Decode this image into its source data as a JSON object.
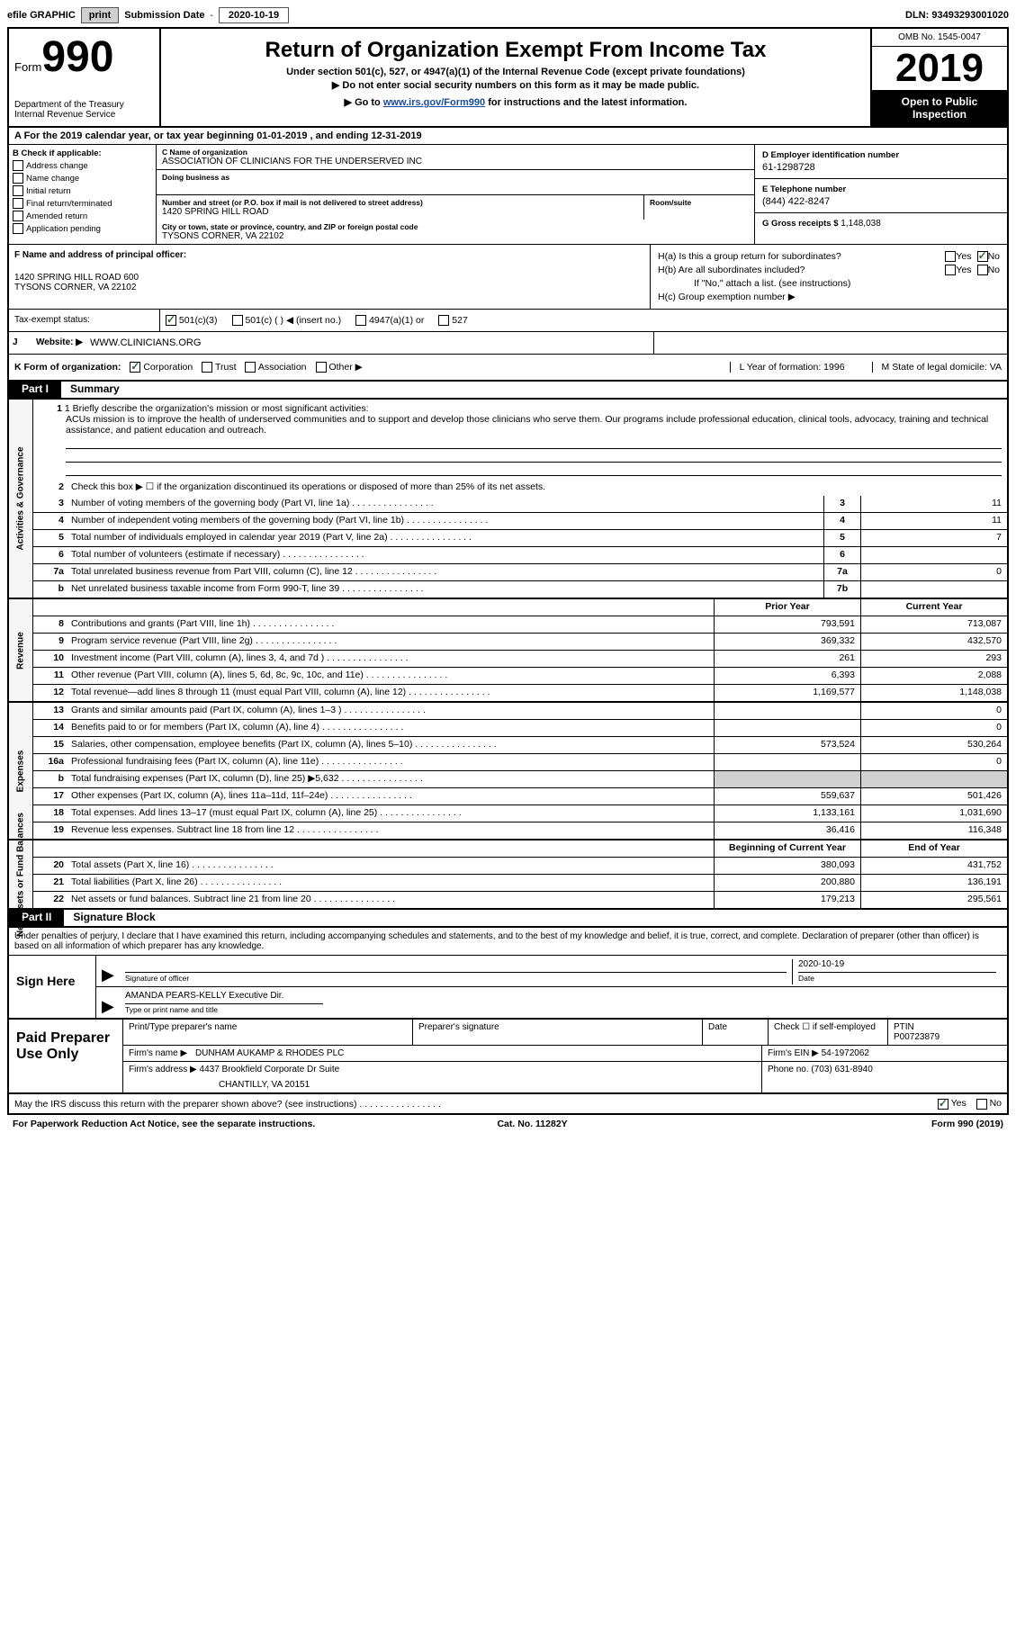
{
  "topbar": {
    "efile": "efile GRAPHIC",
    "print": "print",
    "sub_label": "Submission Date",
    "sub_date": "2020-10-19",
    "dln": "DLN: 93493293001020"
  },
  "header": {
    "form_prefix": "Form",
    "form_num": "990",
    "dept": "Department of the Treasury Internal Revenue Service",
    "title": "Return of Organization Exempt From Income Tax",
    "sub1": "Under section 501(c), 527, or 4947(a)(1) of the Internal Revenue Code (except private foundations)",
    "sub2": "▶ Do not enter social security numbers on this form as it may be made public.",
    "sub3_pre": "▶ Go to ",
    "sub3_link": "www.irs.gov/Form990",
    "sub3_post": " for instructions and the latest information.",
    "omb": "OMB No. 1545-0047",
    "year": "2019",
    "inspect1": "Open to Public",
    "inspect2": "Inspection"
  },
  "lineA": "A For the 2019 calendar year, or tax year beginning 01-01-2019   , and ending 12-31-2019",
  "colB": {
    "title": "B Check if applicable:",
    "addr": "Address change",
    "name": "Name change",
    "init": "Initial return",
    "final": "Final return/terminated",
    "amend": "Amended return",
    "app": "Application pending"
  },
  "colC": {
    "name_lbl": "C Name of organization",
    "name_val": "ASSOCIATION OF CLINICIANS FOR THE UNDERSERVED INC",
    "dba_lbl": "Doing business as",
    "addr_lbl": "Number and street (or P.O. box if mail is not delivered to street address)",
    "addr_val": "1420 SPRING HILL ROAD",
    "room_lbl": "Room/suite",
    "city_lbl": "City or town, state or province, country, and ZIP or foreign postal code",
    "city_val": "TYSONS CORNER, VA  22102"
  },
  "colD": {
    "ein_lbl": "D Employer identification number",
    "ein_val": "61-1298728",
    "tel_lbl": "E Telephone number",
    "tel_val": "(844) 422-8247",
    "gross_lbl": "G Gross receipts $",
    "gross_val": "1,148,038"
  },
  "colF": {
    "lbl": "F  Name and address of principal officer:",
    "addr1": "1420 SPRING HILL ROAD 600",
    "addr2": "TYSONS CORNER, VA  22102"
  },
  "colH": {
    "ha": "H(a)  Is this a group return for subordinates?",
    "hb": "H(b)  Are all subordinates included?",
    "hb2": "If \"No,\" attach a list. (see instructions)",
    "hc": "H(c)  Group exemption number ▶",
    "yes": "Yes",
    "no": "No"
  },
  "taxstatus": {
    "lbl": "Tax-exempt status:",
    "o1": "501(c)(3)",
    "o2": "501(c) (  ) ◀ (insert no.)",
    "o3": "4947(a)(1) or",
    "o4": "527"
  },
  "website": {
    "j": "J",
    "lbl": "Website: ▶",
    "val": "WWW.CLINICIANS.ORG"
  },
  "k": {
    "lbl": "K Form of organization:",
    "corp": "Corporation",
    "trust": "Trust",
    "assoc": "Association",
    "other": "Other ▶",
    "l": "L Year of formation: 1996",
    "m": "M State of legal domicile: VA"
  },
  "part1": {
    "tab": "Part I",
    "title": "Summary",
    "side1": "Activities & Governance",
    "side2": "Revenue",
    "side3": "Expenses",
    "side4": "Net Assets or Fund Balances",
    "l1": "1  Briefly describe the organization's mission or most significant activities:",
    "mission": "ACUs mission is to improve the health of underserved communities and to support and develop those clinicians who serve them. Our programs include professional education, clinical tools, advocacy, training and technical assistance, and patient education and outreach.",
    "l2": "Check this box ▶ ☐  if the organization discontinued its operations or disposed of more than 25% of its net assets.",
    "lines_ag": [
      {
        "n": "3",
        "d": "Number of voting members of the governing body (Part VI, line 1a)",
        "b": "3",
        "v": "11"
      },
      {
        "n": "4",
        "d": "Number of independent voting members of the governing body (Part VI, line 1b)",
        "b": "4",
        "v": "11"
      },
      {
        "n": "5",
        "d": "Total number of individuals employed in calendar year 2019 (Part V, line 2a)",
        "b": "5",
        "v": "7"
      },
      {
        "n": "6",
        "d": "Total number of volunteers (estimate if necessary)",
        "b": "6",
        "v": ""
      },
      {
        "n": "7a",
        "d": "Total unrelated business revenue from Part VIII, column (C), line 12",
        "b": "7a",
        "v": "0"
      },
      {
        "n": "b",
        "d": "Net unrelated business taxable income from Form 990-T, line 39",
        "b": "7b",
        "v": ""
      }
    ],
    "hdr_py": "Prior Year",
    "hdr_cy": "Current Year",
    "lines_rev": [
      {
        "n": "8",
        "d": "Contributions and grants (Part VIII, line 1h)",
        "py": "793,591",
        "cy": "713,087"
      },
      {
        "n": "9",
        "d": "Program service revenue (Part VIII, line 2g)",
        "py": "369,332",
        "cy": "432,570"
      },
      {
        "n": "10",
        "d": "Investment income (Part VIII, column (A), lines 3, 4, and 7d )",
        "py": "261",
        "cy": "293"
      },
      {
        "n": "11",
        "d": "Other revenue (Part VIII, column (A), lines 5, 6d, 8c, 9c, 10c, and 11e)",
        "py": "6,393",
        "cy": "2,088"
      },
      {
        "n": "12",
        "d": "Total revenue—add lines 8 through 11 (must equal Part VIII, column (A), line 12)",
        "py": "1,169,577",
        "cy": "1,148,038"
      }
    ],
    "lines_exp": [
      {
        "n": "13",
        "d": "Grants and similar amounts paid (Part IX, column (A), lines 1–3 )",
        "py": "",
        "cy": "0"
      },
      {
        "n": "14",
        "d": "Benefits paid to or for members (Part IX, column (A), line 4)",
        "py": "",
        "cy": "0"
      },
      {
        "n": "15",
        "d": "Salaries, other compensation, employee benefits (Part IX, column (A), lines 5–10)",
        "py": "573,524",
        "cy": "530,264"
      },
      {
        "n": "16a",
        "d": "Professional fundraising fees (Part IX, column (A), line 11e)",
        "py": "",
        "cy": "0"
      },
      {
        "n": "b",
        "d": "Total fundraising expenses (Part IX, column (D), line 25) ▶5,632",
        "py": "",
        "cy": "",
        "shade": true
      },
      {
        "n": "17",
        "d": "Other expenses (Part IX, column (A), lines 11a–11d, 11f–24e)",
        "py": "559,637",
        "cy": "501,426"
      },
      {
        "n": "18",
        "d": "Total expenses. Add lines 13–17 (must equal Part IX, column (A), line 25)",
        "py": "1,133,161",
        "cy": "1,031,690"
      },
      {
        "n": "19",
        "d": "Revenue less expenses. Subtract line 18 from line 12",
        "py": "36,416",
        "cy": "116,348"
      }
    ],
    "hdr_by": "Beginning of Current Year",
    "hdr_ey": "End of Year",
    "lines_na": [
      {
        "n": "20",
        "d": "Total assets (Part X, line 16)",
        "py": "380,093",
        "cy": "431,752"
      },
      {
        "n": "21",
        "d": "Total liabilities (Part X, line 26)",
        "py": "200,880",
        "cy": "136,191"
      },
      {
        "n": "22",
        "d": "Net assets or fund balances. Subtract line 21 from line 20",
        "py": "179,213",
        "cy": "295,561"
      }
    ]
  },
  "part2": {
    "tab": "Part II",
    "title": "Signature Block",
    "decl": "Under penalties of perjury, I declare that I have examined this return, including accompanying schedules and statements, and to the best of my knowledge and belief, it is true, correct, and complete. Declaration of preparer (other than officer) is based on all information of which preparer has any knowledge.",
    "sign_here": "Sign Here",
    "sig_of_officer": "Signature of officer",
    "sig_date": "2020-10-19",
    "date_lbl": "Date",
    "officer_name": "AMANDA PEARS-KELLY  Executive Dir.",
    "type_name_lbl": "Type or print name and title",
    "paid_prep": "Paid Preparer Use Only",
    "prep_name_lbl": "Print/Type preparer's name",
    "prep_sig_lbl": "Preparer's signature",
    "prep_date_lbl": "Date",
    "prep_check": "Check ☐ if self-employed",
    "ptin_lbl": "PTIN",
    "ptin_val": "P00723879",
    "firm_name_lbl": "Firm's name    ▶",
    "firm_name_val": "DUNHAM AUKAMP & RHODES PLC",
    "firm_ein_lbl": "Firm's EIN ▶",
    "firm_ein_val": "54-1972062",
    "firm_addr_lbl": "Firm's address ▶",
    "firm_addr_val": "4437 Brookfield Corporate Dr Suite",
    "firm_city": "CHANTILLY, VA  20151",
    "phone_lbl": "Phone no.",
    "phone_val": "(703) 631-8940",
    "discuss": "May the IRS discuss this return with the preparer shown above? (see instructions)",
    "paperwork": "For Paperwork Reduction Act Notice, see the separate instructions.",
    "catno": "Cat. No. 11282Y",
    "formver": "Form 990 (2019)"
  }
}
